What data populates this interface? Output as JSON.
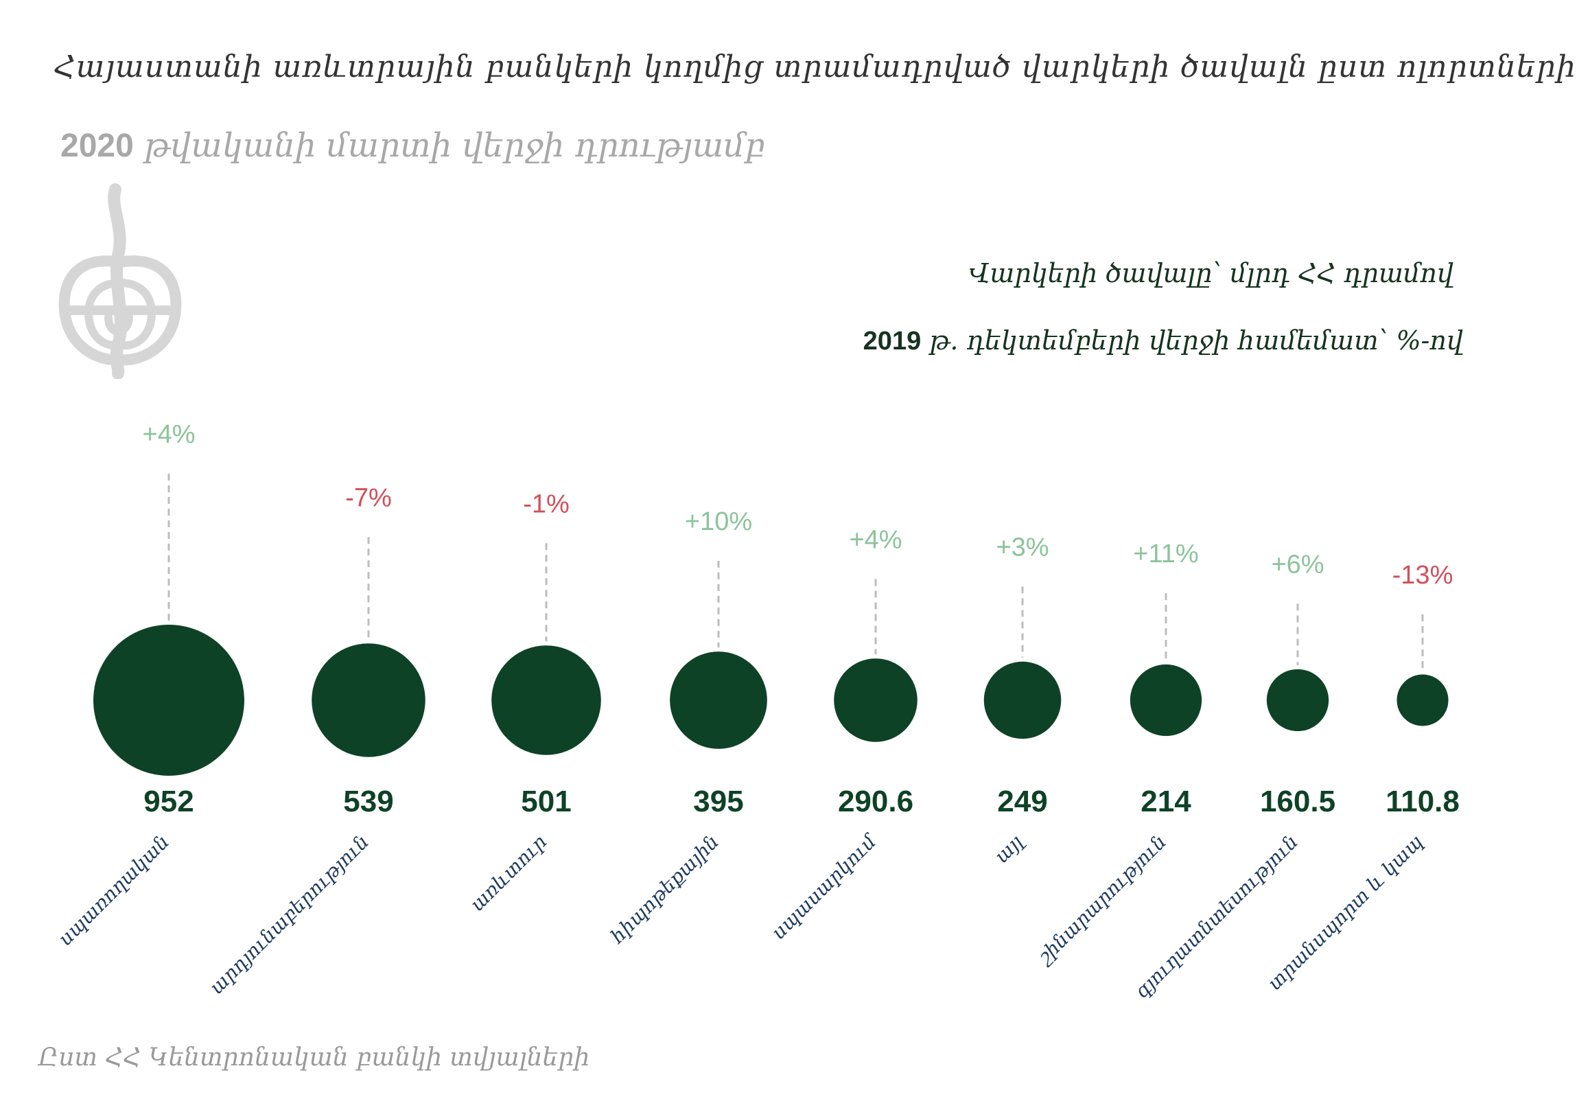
{
  "title": "Հայաստանի առևտրային բանկերի կողմից տրամադրված վարկերի ծավալն ըստ ոլորտների",
  "subtitle_year": "2020",
  "subtitle_rest": "թվականի մարտի վերջի դրությամբ",
  "note_volume": "Վարկերի ծավալը՝ մլրդ ՀՀ դրամով",
  "note_change_year": "2019",
  "note_change_rest": "թ. դեկտեմբերի վերջի համեմատ՝ %-ով",
  "source": "Ըստ ՀՀ Կենտրոնական բանկի տվյալների",
  "colors": {
    "bubble": "#0e4227",
    "positive": "#8cc39c",
    "negative": "#d0505a",
    "value": "#0e4227",
    "category": "#1d3a5c",
    "leader": "#bcbcbc"
  },
  "chart_data": {
    "type": "bubble",
    "unit": "մլրդ ՀՀ դրամ",
    "categories": [
      "սպառողական",
      "արդյունաբերություն",
      "առևտուր",
      "հիպոթեքային",
      "սպասարկում",
      "այլ",
      "շինարարություն",
      "գյուղատնտեսություն",
      "տրանսպորտ և կապ"
    ],
    "values": [
      952,
      539,
      501,
      395,
      290.6,
      249,
      214,
      160.5,
      110.8
    ],
    "value_labels": [
      "952",
      "539",
      "501",
      "395",
      "290.6",
      "249",
      "214",
      "160.5",
      "110.8"
    ],
    "change_percent": [
      4,
      -7,
      -1,
      10,
      4,
      3,
      11,
      6,
      -13
    ],
    "change_labels": [
      "+4%",
      "-7%",
      "-1%",
      "+10%",
      "+4%",
      "+3%",
      "+11%",
      "+6%",
      "-13%"
    ]
  }
}
